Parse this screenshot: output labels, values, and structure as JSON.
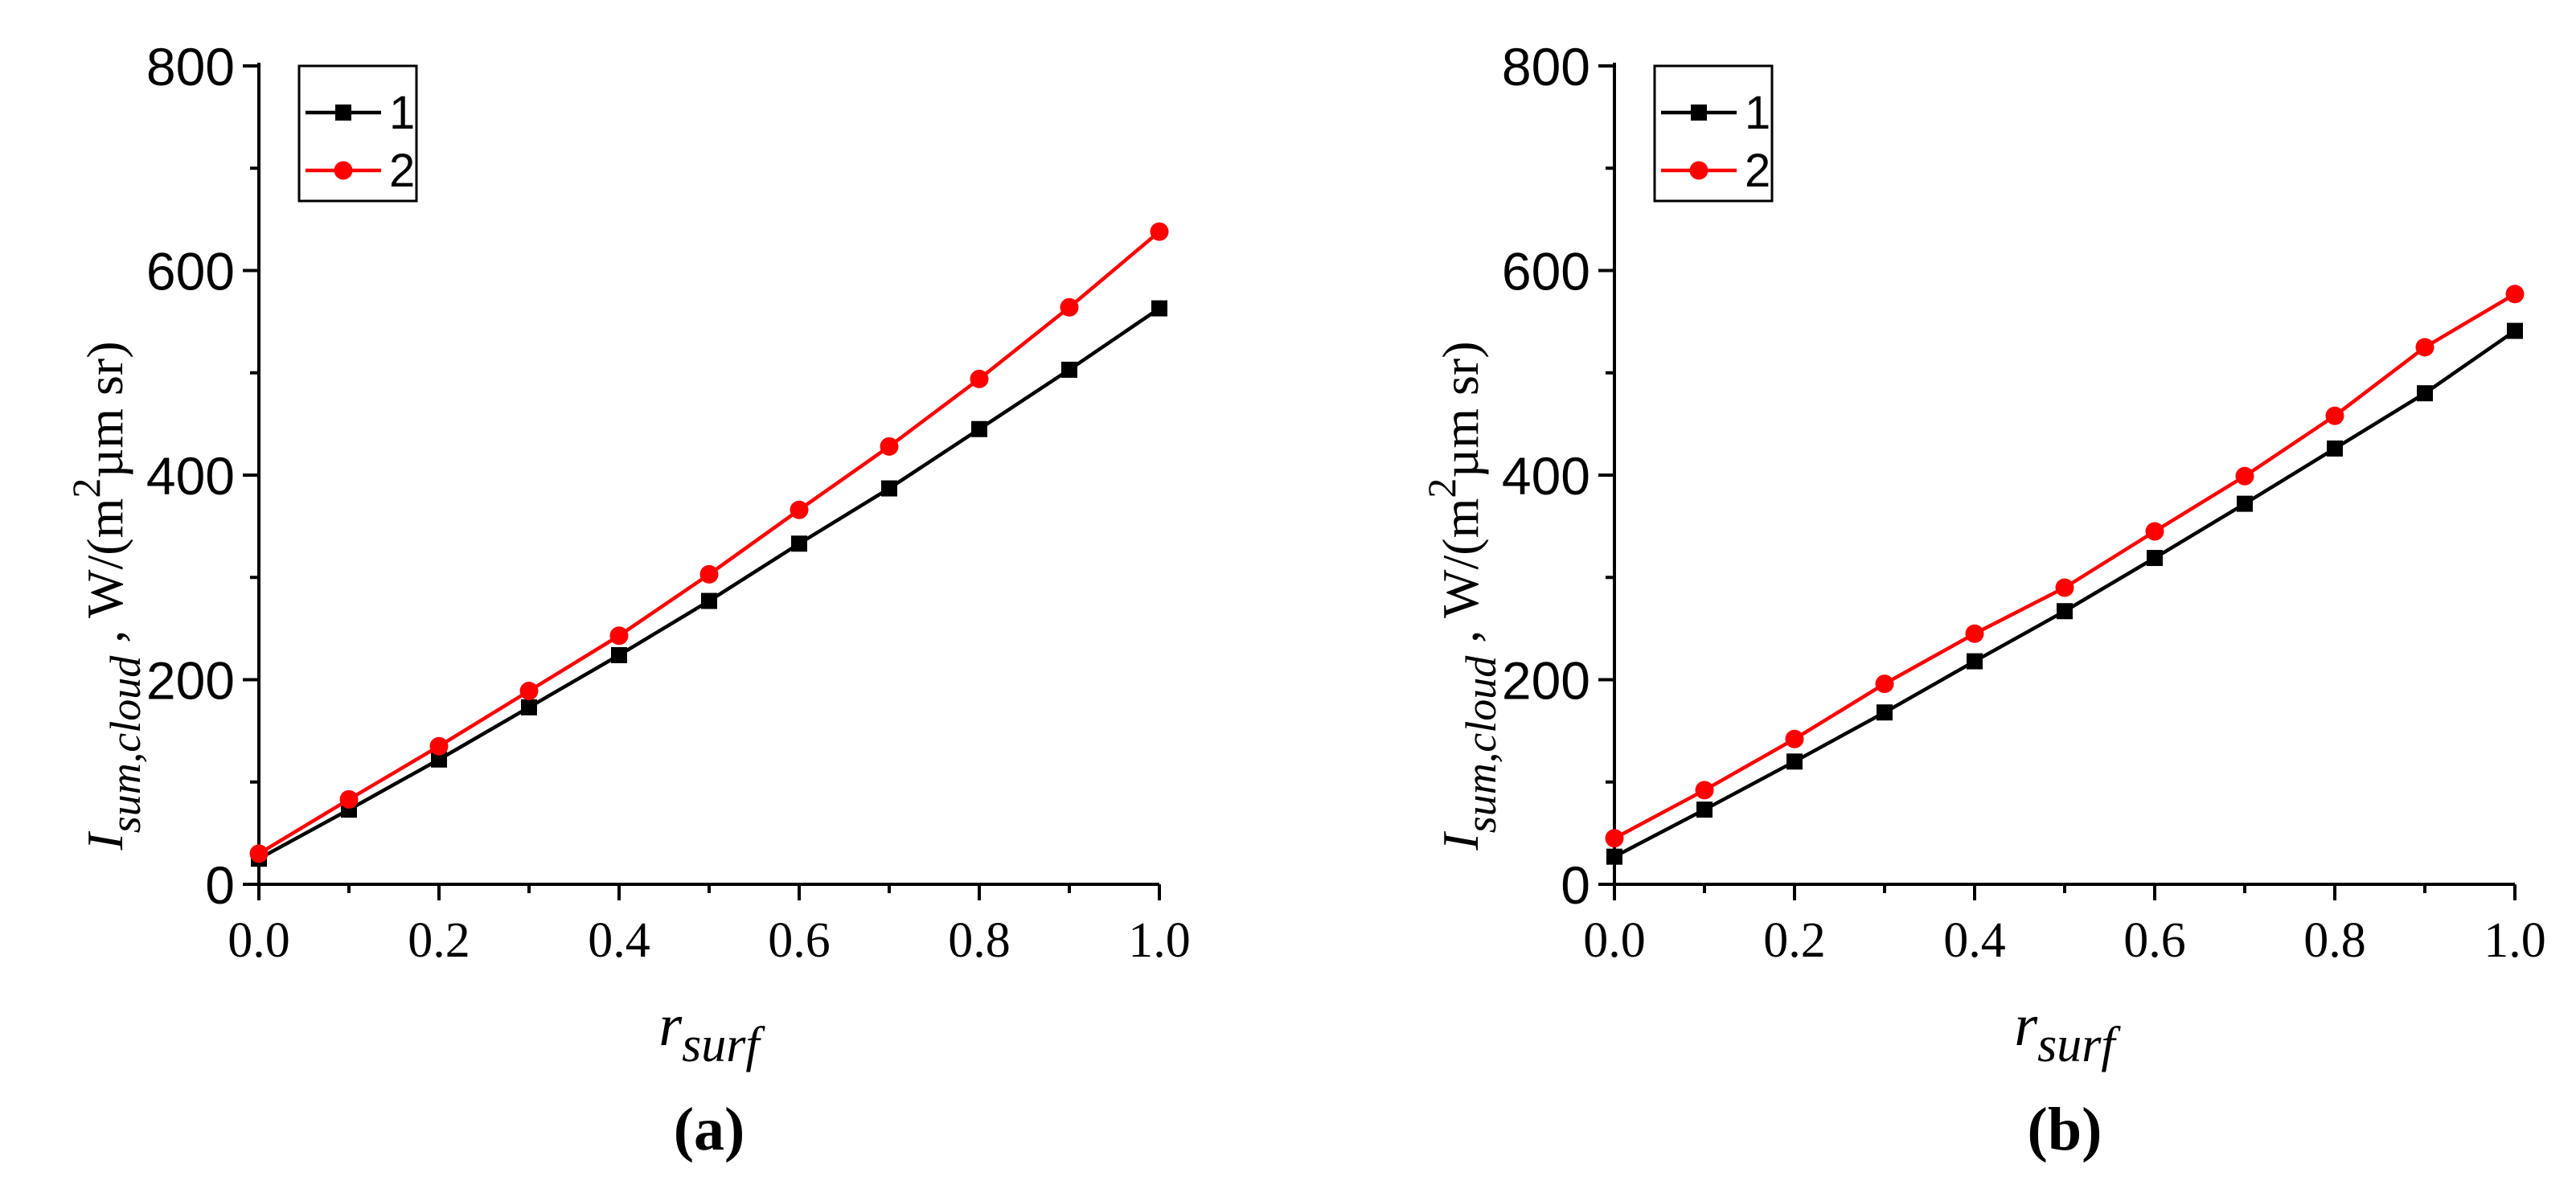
{
  "chart_data": [
    {
      "type": "line",
      "panel_label": "(a)",
      "xlabel_main": "r",
      "xlabel_sub": "surf",
      "ylabel_main": "I",
      "ylabel_sub": "sum,cloud",
      "ylabel_unit_pre": " ,  W/(m",
      "ylabel_unit_sup": "2",
      "ylabel_unit_post": "µm sr)",
      "xlim": [
        0.0,
        1.0
      ],
      "ylim": [
        0,
        800
      ],
      "x_ticks": [
        "0.0",
        "0.2",
        "0.4",
        "0.6",
        "0.8",
        "1.0"
      ],
      "y_ticks": [
        "0",
        "200",
        "400",
        "600",
        "800"
      ],
      "x": [
        0.0,
        0.1,
        0.2,
        0.3,
        0.4,
        0.5,
        0.6,
        0.7,
        0.8,
        0.9,
        1.0
      ],
      "series": [
        {
          "name": "1",
          "color": "#000000",
          "marker": "square",
          "values": [
            25,
            73,
            122,
            173,
            224,
            277,
            333,
            387,
            445,
            503,
            563
          ]
        },
        {
          "name": "2",
          "color": "#ff0000",
          "marker": "circle",
          "values": [
            30,
            83,
            135,
            189,
            243,
            303,
            366,
            428,
            494,
            564,
            638
          ]
        }
      ]
    },
    {
      "type": "line",
      "panel_label": "(b)",
      "xlabel_main": "r",
      "xlabel_sub": "surf",
      "ylabel_main": "I",
      "ylabel_sub": "sum,cloud",
      "ylabel_unit_pre": " ,  W/(m",
      "ylabel_unit_sup": "2",
      "ylabel_unit_post": "µm sr)",
      "xlim": [
        0.0,
        1.0
      ],
      "ylim": [
        0,
        800
      ],
      "x_ticks": [
        "0.0",
        "0.2",
        "0.4",
        "0.6",
        "0.8",
        "1.0"
      ],
      "y_ticks": [
        "0",
        "200",
        "400",
        "600",
        "800"
      ],
      "x": [
        0.0,
        0.1,
        0.2,
        0.3,
        0.4,
        0.5,
        0.6,
        0.7,
        0.8,
        0.9,
        1.0
      ],
      "series": [
        {
          "name": "1",
          "color": "#000000",
          "marker": "square",
          "values": [
            27,
            73,
            120,
            168,
            218,
            267,
            319,
            372,
            426,
            480,
            541
          ]
        },
        {
          "name": "2",
          "color": "#ff0000",
          "marker": "circle",
          "values": [
            45,
            92,
            142,
            196,
            245,
            290,
            345,
            399,
            458,
            525,
            577
          ]
        }
      ]
    }
  ]
}
